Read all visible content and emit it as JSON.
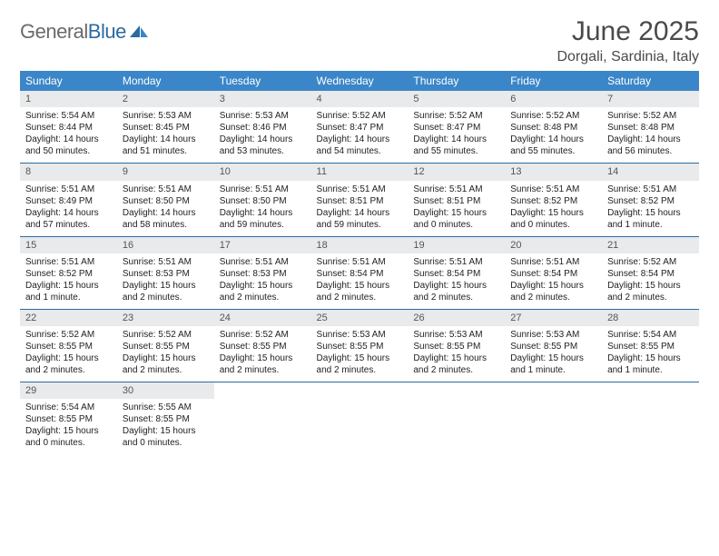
{
  "logo": {
    "word1": "General",
    "word2": "Blue"
  },
  "title": "June 2025",
  "subtitle": "Dorgali, Sardinia, Italy",
  "colors": {
    "header_bg": "#3a86c8",
    "divider": "#2d6aa0",
    "daynum_bg": "#e8eaec",
    "page_bg": "#ffffff",
    "logo_gray": "#6a6a6a",
    "logo_blue": "#2d6aa0"
  },
  "weekdays": [
    "Sunday",
    "Monday",
    "Tuesday",
    "Wednesday",
    "Thursday",
    "Friday",
    "Saturday"
  ],
  "weeks": [
    [
      {
        "n": "1",
        "sr": "Sunrise: 5:54 AM",
        "ss": "Sunset: 8:44 PM",
        "dl": "Daylight: 14 hours and 50 minutes."
      },
      {
        "n": "2",
        "sr": "Sunrise: 5:53 AM",
        "ss": "Sunset: 8:45 PM",
        "dl": "Daylight: 14 hours and 51 minutes."
      },
      {
        "n": "3",
        "sr": "Sunrise: 5:53 AM",
        "ss": "Sunset: 8:46 PM",
        "dl": "Daylight: 14 hours and 53 minutes."
      },
      {
        "n": "4",
        "sr": "Sunrise: 5:52 AM",
        "ss": "Sunset: 8:47 PM",
        "dl": "Daylight: 14 hours and 54 minutes."
      },
      {
        "n": "5",
        "sr": "Sunrise: 5:52 AM",
        "ss": "Sunset: 8:47 PM",
        "dl": "Daylight: 14 hours and 55 minutes."
      },
      {
        "n": "6",
        "sr": "Sunrise: 5:52 AM",
        "ss": "Sunset: 8:48 PM",
        "dl": "Daylight: 14 hours and 55 minutes."
      },
      {
        "n": "7",
        "sr": "Sunrise: 5:52 AM",
        "ss": "Sunset: 8:48 PM",
        "dl": "Daylight: 14 hours and 56 minutes."
      }
    ],
    [
      {
        "n": "8",
        "sr": "Sunrise: 5:51 AM",
        "ss": "Sunset: 8:49 PM",
        "dl": "Daylight: 14 hours and 57 minutes."
      },
      {
        "n": "9",
        "sr": "Sunrise: 5:51 AM",
        "ss": "Sunset: 8:50 PM",
        "dl": "Daylight: 14 hours and 58 minutes."
      },
      {
        "n": "10",
        "sr": "Sunrise: 5:51 AM",
        "ss": "Sunset: 8:50 PM",
        "dl": "Daylight: 14 hours and 59 minutes."
      },
      {
        "n": "11",
        "sr": "Sunrise: 5:51 AM",
        "ss": "Sunset: 8:51 PM",
        "dl": "Daylight: 14 hours and 59 minutes."
      },
      {
        "n": "12",
        "sr": "Sunrise: 5:51 AM",
        "ss": "Sunset: 8:51 PM",
        "dl": "Daylight: 15 hours and 0 minutes."
      },
      {
        "n": "13",
        "sr": "Sunrise: 5:51 AM",
        "ss": "Sunset: 8:52 PM",
        "dl": "Daylight: 15 hours and 0 minutes."
      },
      {
        "n": "14",
        "sr": "Sunrise: 5:51 AM",
        "ss": "Sunset: 8:52 PM",
        "dl": "Daylight: 15 hours and 1 minute."
      }
    ],
    [
      {
        "n": "15",
        "sr": "Sunrise: 5:51 AM",
        "ss": "Sunset: 8:52 PM",
        "dl": "Daylight: 15 hours and 1 minute."
      },
      {
        "n": "16",
        "sr": "Sunrise: 5:51 AM",
        "ss": "Sunset: 8:53 PM",
        "dl": "Daylight: 15 hours and 2 minutes."
      },
      {
        "n": "17",
        "sr": "Sunrise: 5:51 AM",
        "ss": "Sunset: 8:53 PM",
        "dl": "Daylight: 15 hours and 2 minutes."
      },
      {
        "n": "18",
        "sr": "Sunrise: 5:51 AM",
        "ss": "Sunset: 8:54 PM",
        "dl": "Daylight: 15 hours and 2 minutes."
      },
      {
        "n": "19",
        "sr": "Sunrise: 5:51 AM",
        "ss": "Sunset: 8:54 PM",
        "dl": "Daylight: 15 hours and 2 minutes."
      },
      {
        "n": "20",
        "sr": "Sunrise: 5:51 AM",
        "ss": "Sunset: 8:54 PM",
        "dl": "Daylight: 15 hours and 2 minutes."
      },
      {
        "n": "21",
        "sr": "Sunrise: 5:52 AM",
        "ss": "Sunset: 8:54 PM",
        "dl": "Daylight: 15 hours and 2 minutes."
      }
    ],
    [
      {
        "n": "22",
        "sr": "Sunrise: 5:52 AM",
        "ss": "Sunset: 8:55 PM",
        "dl": "Daylight: 15 hours and 2 minutes."
      },
      {
        "n": "23",
        "sr": "Sunrise: 5:52 AM",
        "ss": "Sunset: 8:55 PM",
        "dl": "Daylight: 15 hours and 2 minutes."
      },
      {
        "n": "24",
        "sr": "Sunrise: 5:52 AM",
        "ss": "Sunset: 8:55 PM",
        "dl": "Daylight: 15 hours and 2 minutes."
      },
      {
        "n": "25",
        "sr": "Sunrise: 5:53 AM",
        "ss": "Sunset: 8:55 PM",
        "dl": "Daylight: 15 hours and 2 minutes."
      },
      {
        "n": "26",
        "sr": "Sunrise: 5:53 AM",
        "ss": "Sunset: 8:55 PM",
        "dl": "Daylight: 15 hours and 2 minutes."
      },
      {
        "n": "27",
        "sr": "Sunrise: 5:53 AM",
        "ss": "Sunset: 8:55 PM",
        "dl": "Daylight: 15 hours and 1 minute."
      },
      {
        "n": "28",
        "sr": "Sunrise: 5:54 AM",
        "ss": "Sunset: 8:55 PM",
        "dl": "Daylight: 15 hours and 1 minute."
      }
    ],
    [
      {
        "n": "29",
        "sr": "Sunrise: 5:54 AM",
        "ss": "Sunset: 8:55 PM",
        "dl": "Daylight: 15 hours and 0 minutes."
      },
      {
        "n": "30",
        "sr": "Sunrise: 5:55 AM",
        "ss": "Sunset: 8:55 PM",
        "dl": "Daylight: 15 hours and 0 minutes."
      },
      {
        "empty": true
      },
      {
        "empty": true
      },
      {
        "empty": true
      },
      {
        "empty": true
      },
      {
        "empty": true
      }
    ]
  ]
}
